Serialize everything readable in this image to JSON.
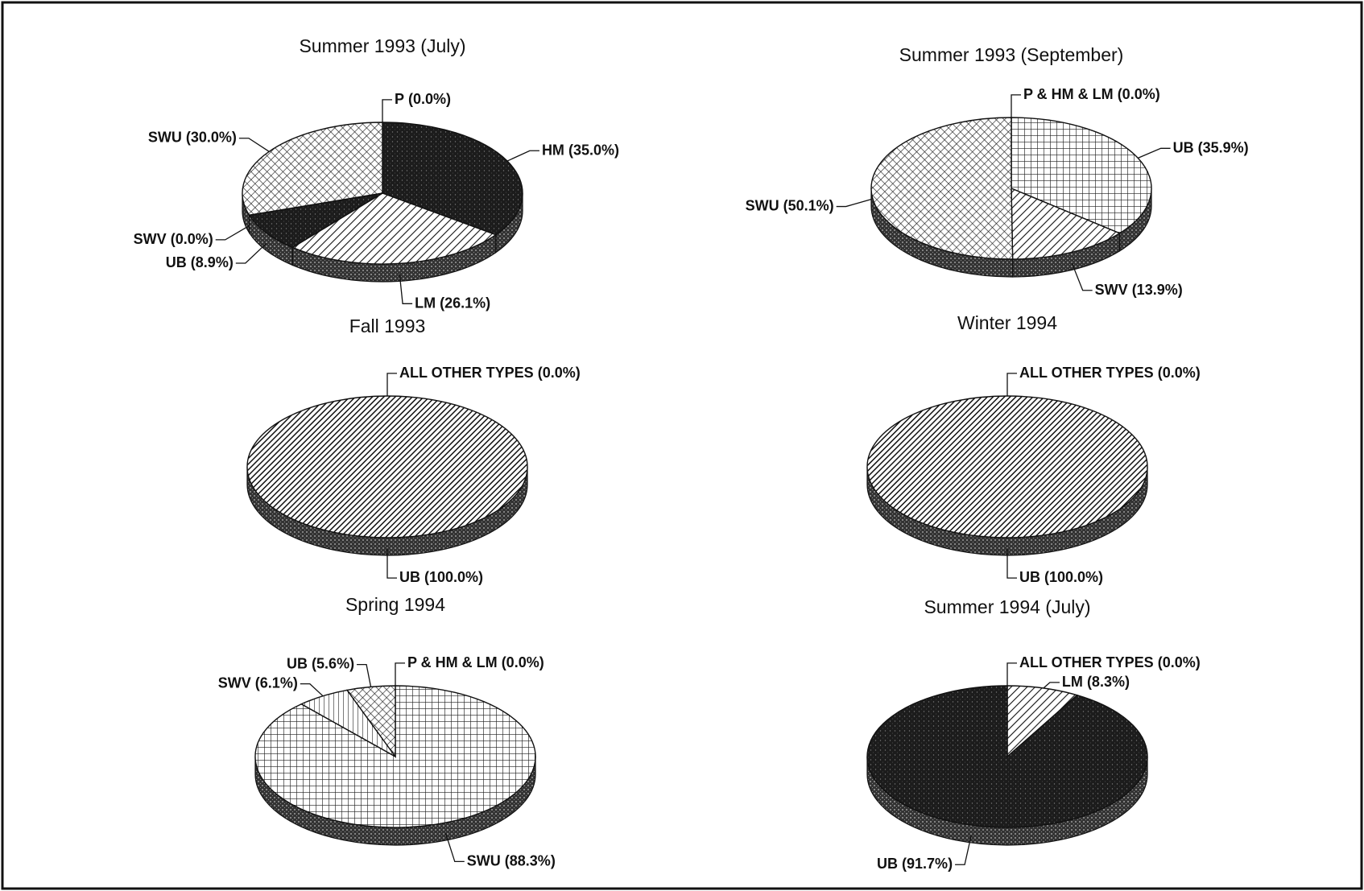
{
  "chart_data": [
    {
      "type": "pie",
      "title": "Summer 1993 (July)",
      "categories": [
        "P",
        "HM",
        "LM",
        "UB",
        "SWV",
        "SWU"
      ],
      "values": [
        0.0,
        35.0,
        26.1,
        8.9,
        0.0,
        30.0
      ],
      "value_labels": [
        "(0.0%)",
        "(35.0%)",
        "(26.1%)",
        "(8.9%)",
        "(0.0%)",
        "(30.0%)"
      ],
      "patterns": [
        "stipple",
        "stipple",
        "hatch",
        "stipple",
        "vlines",
        "crosshatch"
      ]
    },
    {
      "type": "pie",
      "title": "Summer 1993 (September)",
      "categories": [
        "P & HM & LM",
        "UB",
        "SWV",
        "SWU"
      ],
      "values": [
        0.0,
        35.9,
        13.9,
        50.1
      ],
      "value_labels": [
        "(0.0%)",
        "(35.9%)",
        "(13.9%)",
        "(50.1%)"
      ],
      "patterns": [
        "stipple",
        "grid",
        "hatch",
        "crosshatch"
      ]
    },
    {
      "type": "pie",
      "title": "Fall 1993",
      "categories": [
        "ALL OTHER TYPES",
        "UB"
      ],
      "values": [
        0.0,
        100.0
      ],
      "value_labels": [
        "(0.0%)",
        "(100.0%)"
      ],
      "patterns": [
        "stipple",
        "densehatch"
      ]
    },
    {
      "type": "pie",
      "title": "Winter 1994",
      "categories": [
        "ALL OTHER TYPES",
        "UB"
      ],
      "values": [
        0.0,
        100.0
      ],
      "value_labels": [
        "(0.0%)",
        "(100.0%)"
      ],
      "patterns": [
        "stipple",
        "densehatch"
      ]
    },
    {
      "type": "pie",
      "title": "Spring 1994",
      "categories": [
        "P & HM & LM",
        "SWU",
        "SWV",
        "UB"
      ],
      "values": [
        0.0,
        88.3,
        6.1,
        5.6
      ],
      "value_labels": [
        "(0.0%)",
        "(88.3%)",
        "(6.1%)",
        "(5.6%)"
      ],
      "patterns": [
        "stipple",
        "grid",
        "vlines",
        "crosshatch"
      ]
    },
    {
      "type": "pie",
      "title": "Summer 1994 (July)",
      "categories": [
        "ALL OTHER TYPES",
        "LM",
        "UB"
      ],
      "values": [
        0.0,
        8.3,
        91.7
      ],
      "value_labels": [
        "(0.0%)",
        "(8.3%)",
        "(91.7%)"
      ],
      "patterns": [
        "stipple",
        "hatch",
        "stipple"
      ]
    }
  ]
}
